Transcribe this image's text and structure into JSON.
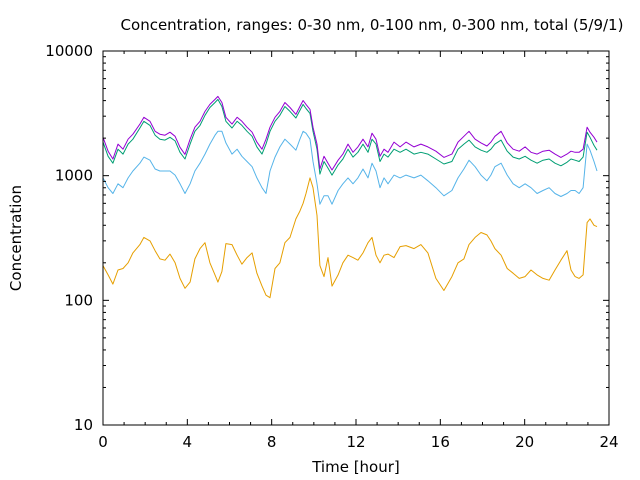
{
  "chart_data": {
    "type": "line",
    "title": "Concentration, ranges: 0-30 nm, 0-100 nm, 0-300 nm, total (5/9/1)",
    "xlabel": "Time [hour]",
    "ylabel": "Concentration",
    "xlim": [
      0,
      24
    ],
    "ylim": [
      10,
      10000
    ],
    "yscale": "log",
    "grid": false,
    "legend": "none",
    "x_ticks": [
      0,
      4,
      8,
      12,
      16,
      20,
      24
    ],
    "x_tick_labels": [
      "0",
      "4",
      "8",
      "12",
      "16",
      "20",
      "24"
    ],
    "y_ticks": [
      10,
      100,
      1000,
      10000
    ],
    "y_tick_labels": [
      "10",
      "100",
      "1000",
      "10000"
    ],
    "series": [
      {
        "name": "total",
        "color": "#9400d3",
        "x": [
          0.0,
          0.24,
          0.47,
          0.71,
          0.95,
          1.19,
          1.42,
          1.75,
          1.94,
          2.23,
          2.47,
          2.7,
          2.94,
          3.18,
          3.42,
          3.65,
          3.89,
          4.13,
          4.36,
          4.6,
          4.84,
          5.07,
          5.31,
          5.45,
          5.64,
          5.83,
          6.12,
          6.36,
          6.59,
          6.83,
          7.07,
          7.3,
          7.54,
          7.73,
          7.92,
          8.16,
          8.39,
          8.63,
          8.87,
          9.15,
          9.34,
          9.49,
          9.63,
          9.82,
          9.96,
          10.15,
          10.29,
          10.48,
          10.67,
          10.86,
          11.15,
          11.38,
          11.62,
          11.86,
          12.09,
          12.33,
          12.57,
          12.76,
          12.95,
          13.14,
          13.33,
          13.52,
          13.8,
          14.09,
          14.37,
          14.75,
          15.08,
          15.41,
          15.79,
          16.17,
          16.55,
          16.84,
          17.12,
          17.36,
          17.65,
          17.93,
          18.21,
          18.4,
          18.59,
          18.88,
          19.17,
          19.45,
          19.74,
          20.02,
          20.3,
          20.59,
          20.87,
          21.16,
          21.44,
          21.72,
          22.01,
          22.2,
          22.39,
          22.58,
          22.77,
          22.96,
          23.1,
          23.29,
          23.43
        ],
        "values": [
          2030,
          1570,
          1360,
          1790,
          1630,
          1960,
          2150,
          2590,
          2940,
          2730,
          2270,
          2150,
          2110,
          2230,
          2070,
          1690,
          1480,
          1960,
          2450,
          2730,
          3280,
          3730,
          4090,
          4320,
          3860,
          2940,
          2590,
          2940,
          2730,
          2450,
          2230,
          1860,
          1630,
          1960,
          2450,
          2940,
          3280,
          3860,
          3520,
          3100,
          3590,
          4010,
          3730,
          3400,
          2450,
          1790,
          1130,
          1430,
          1260,
          1110,
          1330,
          1490,
          1790,
          1540,
          1700,
          1960,
          1700,
          2190,
          1960,
          1430,
          1630,
          1540,
          1860,
          1700,
          1860,
          1700,
          1790,
          1700,
          1570,
          1400,
          1490,
          1860,
          2070,
          2270,
          1960,
          1830,
          1730,
          1860,
          2070,
          2270,
          1830,
          1630,
          1570,
          1700,
          1540,
          1490,
          1570,
          1600,
          1490,
          1400,
          1490,
          1570,
          1540,
          1540,
          1630,
          2450,
          2230,
          2030,
          1860
        ]
      },
      {
        "name": "0-300 nm",
        "color": "#009e73",
        "x": [
          0.0,
          0.24,
          0.47,
          0.71,
          0.95,
          1.19,
          1.42,
          1.75,
          1.94,
          2.23,
          2.47,
          2.7,
          2.94,
          3.18,
          3.42,
          3.65,
          3.89,
          4.13,
          4.36,
          4.6,
          4.84,
          5.07,
          5.31,
          5.45,
          5.64,
          5.83,
          6.12,
          6.36,
          6.59,
          6.83,
          7.07,
          7.3,
          7.54,
          7.73,
          7.92,
          8.16,
          8.39,
          8.63,
          8.87,
          9.15,
          9.34,
          9.49,
          9.63,
          9.82,
          9.96,
          10.15,
          10.29,
          10.48,
          10.67,
          10.86,
          11.15,
          11.38,
          11.62,
          11.86,
          12.09,
          12.33,
          12.57,
          12.76,
          12.95,
          13.14,
          13.33,
          13.52,
          13.8,
          14.09,
          14.37,
          14.75,
          15.08,
          15.41,
          15.79,
          16.17,
          16.55,
          16.84,
          17.12,
          17.36,
          17.65,
          17.93,
          18.21,
          18.4,
          18.59,
          18.88,
          19.17,
          19.45,
          19.74,
          20.02,
          20.3,
          20.59,
          20.87,
          21.16,
          21.44,
          21.72,
          22.01,
          22.2,
          22.39,
          22.58,
          22.77,
          22.96,
          23.1,
          23.29,
          23.43
        ],
        "values": [
          1860,
          1430,
          1260,
          1630,
          1490,
          1790,
          1960,
          2410,
          2730,
          2530,
          2110,
          1960,
          1930,
          2030,
          1900,
          1540,
          1360,
          1790,
          2270,
          2530,
          3050,
          3520,
          3860,
          4090,
          3590,
          2730,
          2410,
          2730,
          2530,
          2270,
          2070,
          1700,
          1490,
          1790,
          2270,
          2730,
          3050,
          3590,
          3280,
          2900,
          3340,
          3730,
          3460,
          3160,
          2270,
          1630,
          1030,
          1300,
          1150,
          1010,
          1220,
          1360,
          1630,
          1410,
          1540,
          1790,
          1540,
          1960,
          1790,
          1300,
          1490,
          1410,
          1630,
          1540,
          1630,
          1490,
          1540,
          1490,
          1360,
          1240,
          1300,
          1630,
          1790,
          1930,
          1700,
          1600,
          1540,
          1630,
          1790,
          1930,
          1570,
          1410,
          1360,
          1430,
          1330,
          1260,
          1330,
          1360,
          1260,
          1200,
          1280,
          1360,
          1330,
          1300,
          1410,
          2230,
          2030,
          1750,
          1600
        ]
      },
      {
        "name": "0-100 nm",
        "color": "#56b4e9",
        "x": [
          0.0,
          0.24,
          0.47,
          0.71,
          0.95,
          1.19,
          1.42,
          1.75,
          1.94,
          2.23,
          2.47,
          2.7,
          2.94,
          3.18,
          3.42,
          3.65,
          3.89,
          4.13,
          4.36,
          4.6,
          4.84,
          5.07,
          5.31,
          5.45,
          5.64,
          5.83,
          6.12,
          6.36,
          6.59,
          6.83,
          7.07,
          7.3,
          7.54,
          7.73,
          7.92,
          8.16,
          8.39,
          8.63,
          8.87,
          9.15,
          9.34,
          9.49,
          9.63,
          9.82,
          9.96,
          10.15,
          10.29,
          10.48,
          10.67,
          10.86,
          11.15,
          11.38,
          11.62,
          11.86,
          12.09,
          12.33,
          12.57,
          12.76,
          12.95,
          13.14,
          13.33,
          13.52,
          13.8,
          14.09,
          14.37,
          14.75,
          15.08,
          15.41,
          15.79,
          16.17,
          16.55,
          16.84,
          17.12,
          17.36,
          17.65,
          17.93,
          18.21,
          18.4,
          18.59,
          18.88,
          19.17,
          19.45,
          19.74,
          20.02,
          20.3,
          20.59,
          20.87,
          21.16,
          21.44,
          21.72,
          22.01,
          22.2,
          22.39,
          22.58,
          22.77,
          22.96,
          23.1,
          23.29,
          23.43
        ],
        "values": [
          960,
          800,
          720,
          860,
          800,
          960,
          1090,
          1260,
          1410,
          1330,
          1130,
          1090,
          1090,
          1090,
          1010,
          860,
          720,
          860,
          1090,
          1260,
          1490,
          1790,
          2110,
          2270,
          2270,
          1830,
          1490,
          1630,
          1430,
          1300,
          1180,
          960,
          800,
          720,
          1090,
          1410,
          1700,
          1960,
          1790,
          1600,
          1960,
          2270,
          2190,
          1960,
          1300,
          860,
          590,
          690,
          690,
          590,
          760,
          860,
          960,
          860,
          960,
          1130,
          960,
          1260,
          1090,
          800,
          960,
          860,
          1010,
          960,
          1010,
          960,
          1010,
          910,
          800,
          690,
          760,
          960,
          1130,
          1330,
          1180,
          1010,
          910,
          1010,
          1180,
          1260,
          1010,
          860,
          800,
          860,
          800,
          720,
          760,
          800,
          720,
          680,
          720,
          760,
          760,
          720,
          800,
          1790,
          1600,
          1300,
          1090
        ]
      },
      {
        "name": "0-30 nm",
        "color": "#e69f00",
        "x": [
          0.0,
          0.24,
          0.47,
          0.71,
          0.95,
          1.19,
          1.42,
          1.75,
          1.94,
          2.23,
          2.47,
          2.7,
          2.94,
          3.18,
          3.42,
          3.65,
          3.89,
          4.13,
          4.36,
          4.6,
          4.84,
          5.07,
          5.31,
          5.45,
          5.64,
          5.83,
          6.12,
          6.36,
          6.59,
          6.83,
          7.07,
          7.3,
          7.54,
          7.73,
          7.92,
          8.16,
          8.39,
          8.63,
          8.87,
          9.15,
          9.34,
          9.49,
          9.63,
          9.82,
          9.96,
          10.15,
          10.29,
          10.48,
          10.67,
          10.86,
          11.15,
          11.38,
          11.62,
          11.86,
          12.09,
          12.33,
          12.57,
          12.76,
          12.95,
          13.14,
          13.33,
          13.52,
          13.8,
          14.09,
          14.37,
          14.75,
          15.08,
          15.41,
          15.79,
          16.17,
          16.55,
          16.84,
          17.12,
          17.36,
          17.65,
          17.93,
          18.21,
          18.4,
          18.59,
          18.88,
          19.17,
          19.45,
          19.74,
          20.02,
          20.3,
          20.59,
          20.87,
          21.16,
          21.44,
          21.72,
          22.01,
          22.2,
          22.39,
          22.58,
          22.77,
          22.96,
          23.1,
          23.29,
          23.43
        ],
        "values": [
          190,
          160,
          135,
          175,
          180,
          200,
          240,
          280,
          320,
          300,
          250,
          215,
          210,
          235,
          200,
          150,
          125,
          140,
          215,
          260,
          290,
          200,
          160,
          140,
          170,
          285,
          280,
          230,
          195,
          220,
          240,
          165,
          130,
          110,
          105,
          180,
          200,
          290,
          320,
          450,
          520,
          600,
          720,
          960,
          800,
          480,
          190,
          155,
          220,
          130,
          160,
          200,
          230,
          220,
          210,
          240,
          290,
          320,
          230,
          200,
          230,
          235,
          220,
          270,
          275,
          260,
          280,
          240,
          150,
          120,
          155,
          200,
          215,
          280,
          320,
          350,
          335,
          300,
          260,
          230,
          180,
          165,
          150,
          155,
          175,
          160,
          150,
          145,
          175,
          210,
          250,
          175,
          155,
          150,
          160,
          420,
          450,
          400,
          390
        ]
      }
    ]
  }
}
